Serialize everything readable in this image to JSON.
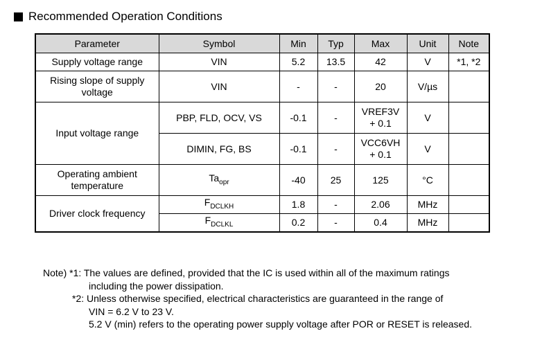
{
  "section": {
    "title": "Recommended Operation Conditions"
  },
  "table": {
    "headers": {
      "parameter": "Parameter",
      "symbol": "Symbol",
      "min": "Min",
      "typ": "Typ",
      "max": "Max",
      "unit": "Unit",
      "note": "Note"
    },
    "rows": {
      "supply": {
        "parameter": "Supply voltage range",
        "symbol": "VIN",
        "min": "5.2",
        "typ": "13.5",
        "max": "42",
        "unit": "V",
        "note": "*1, *2"
      },
      "rising": {
        "parameter_line1": "Rising slope of supply",
        "parameter_line2": "voltage",
        "symbol": "VIN",
        "min": "-",
        "typ": "-",
        "max": "20",
        "unit": "V/µs",
        "note": ""
      },
      "input": {
        "parameter": "Input voltage range",
        "a": {
          "symbol": "PBP, FLD, OCV, VS",
          "min": "-0.1",
          "typ": "-",
          "max_line1": "VREF3V",
          "max_line2": "+ 0.1",
          "unit": "V",
          "note": ""
        },
        "b": {
          "symbol": "DIMIN, FG, BS",
          "min": "-0.1",
          "typ": "-",
          "max_line1": "VCC6VH",
          "max_line2": "+ 0.1",
          "unit": "V",
          "note": ""
        }
      },
      "temp": {
        "parameter_line1": "Operating ambient",
        "parameter_line2": "temperature",
        "symbol_main": "Ta",
        "symbol_sub": "opr",
        "min": "-40",
        "typ": "25",
        "max": "125",
        "unit": "°C",
        "note": ""
      },
      "clock": {
        "parameter": "Driver clock frequency",
        "a": {
          "symbol_main": "F",
          "symbol_sub": "DCLKH",
          "min": "1.8",
          "typ": "-",
          "max": "2.06",
          "unit": "MHz",
          "note": ""
        },
        "b": {
          "symbol_main": "F",
          "symbol_sub": "DCLKL",
          "min": "0.2",
          "typ": "-",
          "max": "0.4",
          "unit": "MHz",
          "note": ""
        }
      }
    }
  },
  "notes": {
    "line1": "Note) *1: The values are defined, provided that the IC is used within all of the maximum ratings",
    "line2": "including the power dissipation.",
    "line3": "*2: Unless otherwise specified, electrical characteristics are guaranteed in the range of",
    "line4": "VIN = 6.2 V to 23 V.",
    "line5": "5.2 V (min) refers to the operating power supply voltage after POR or RESET is released."
  }
}
